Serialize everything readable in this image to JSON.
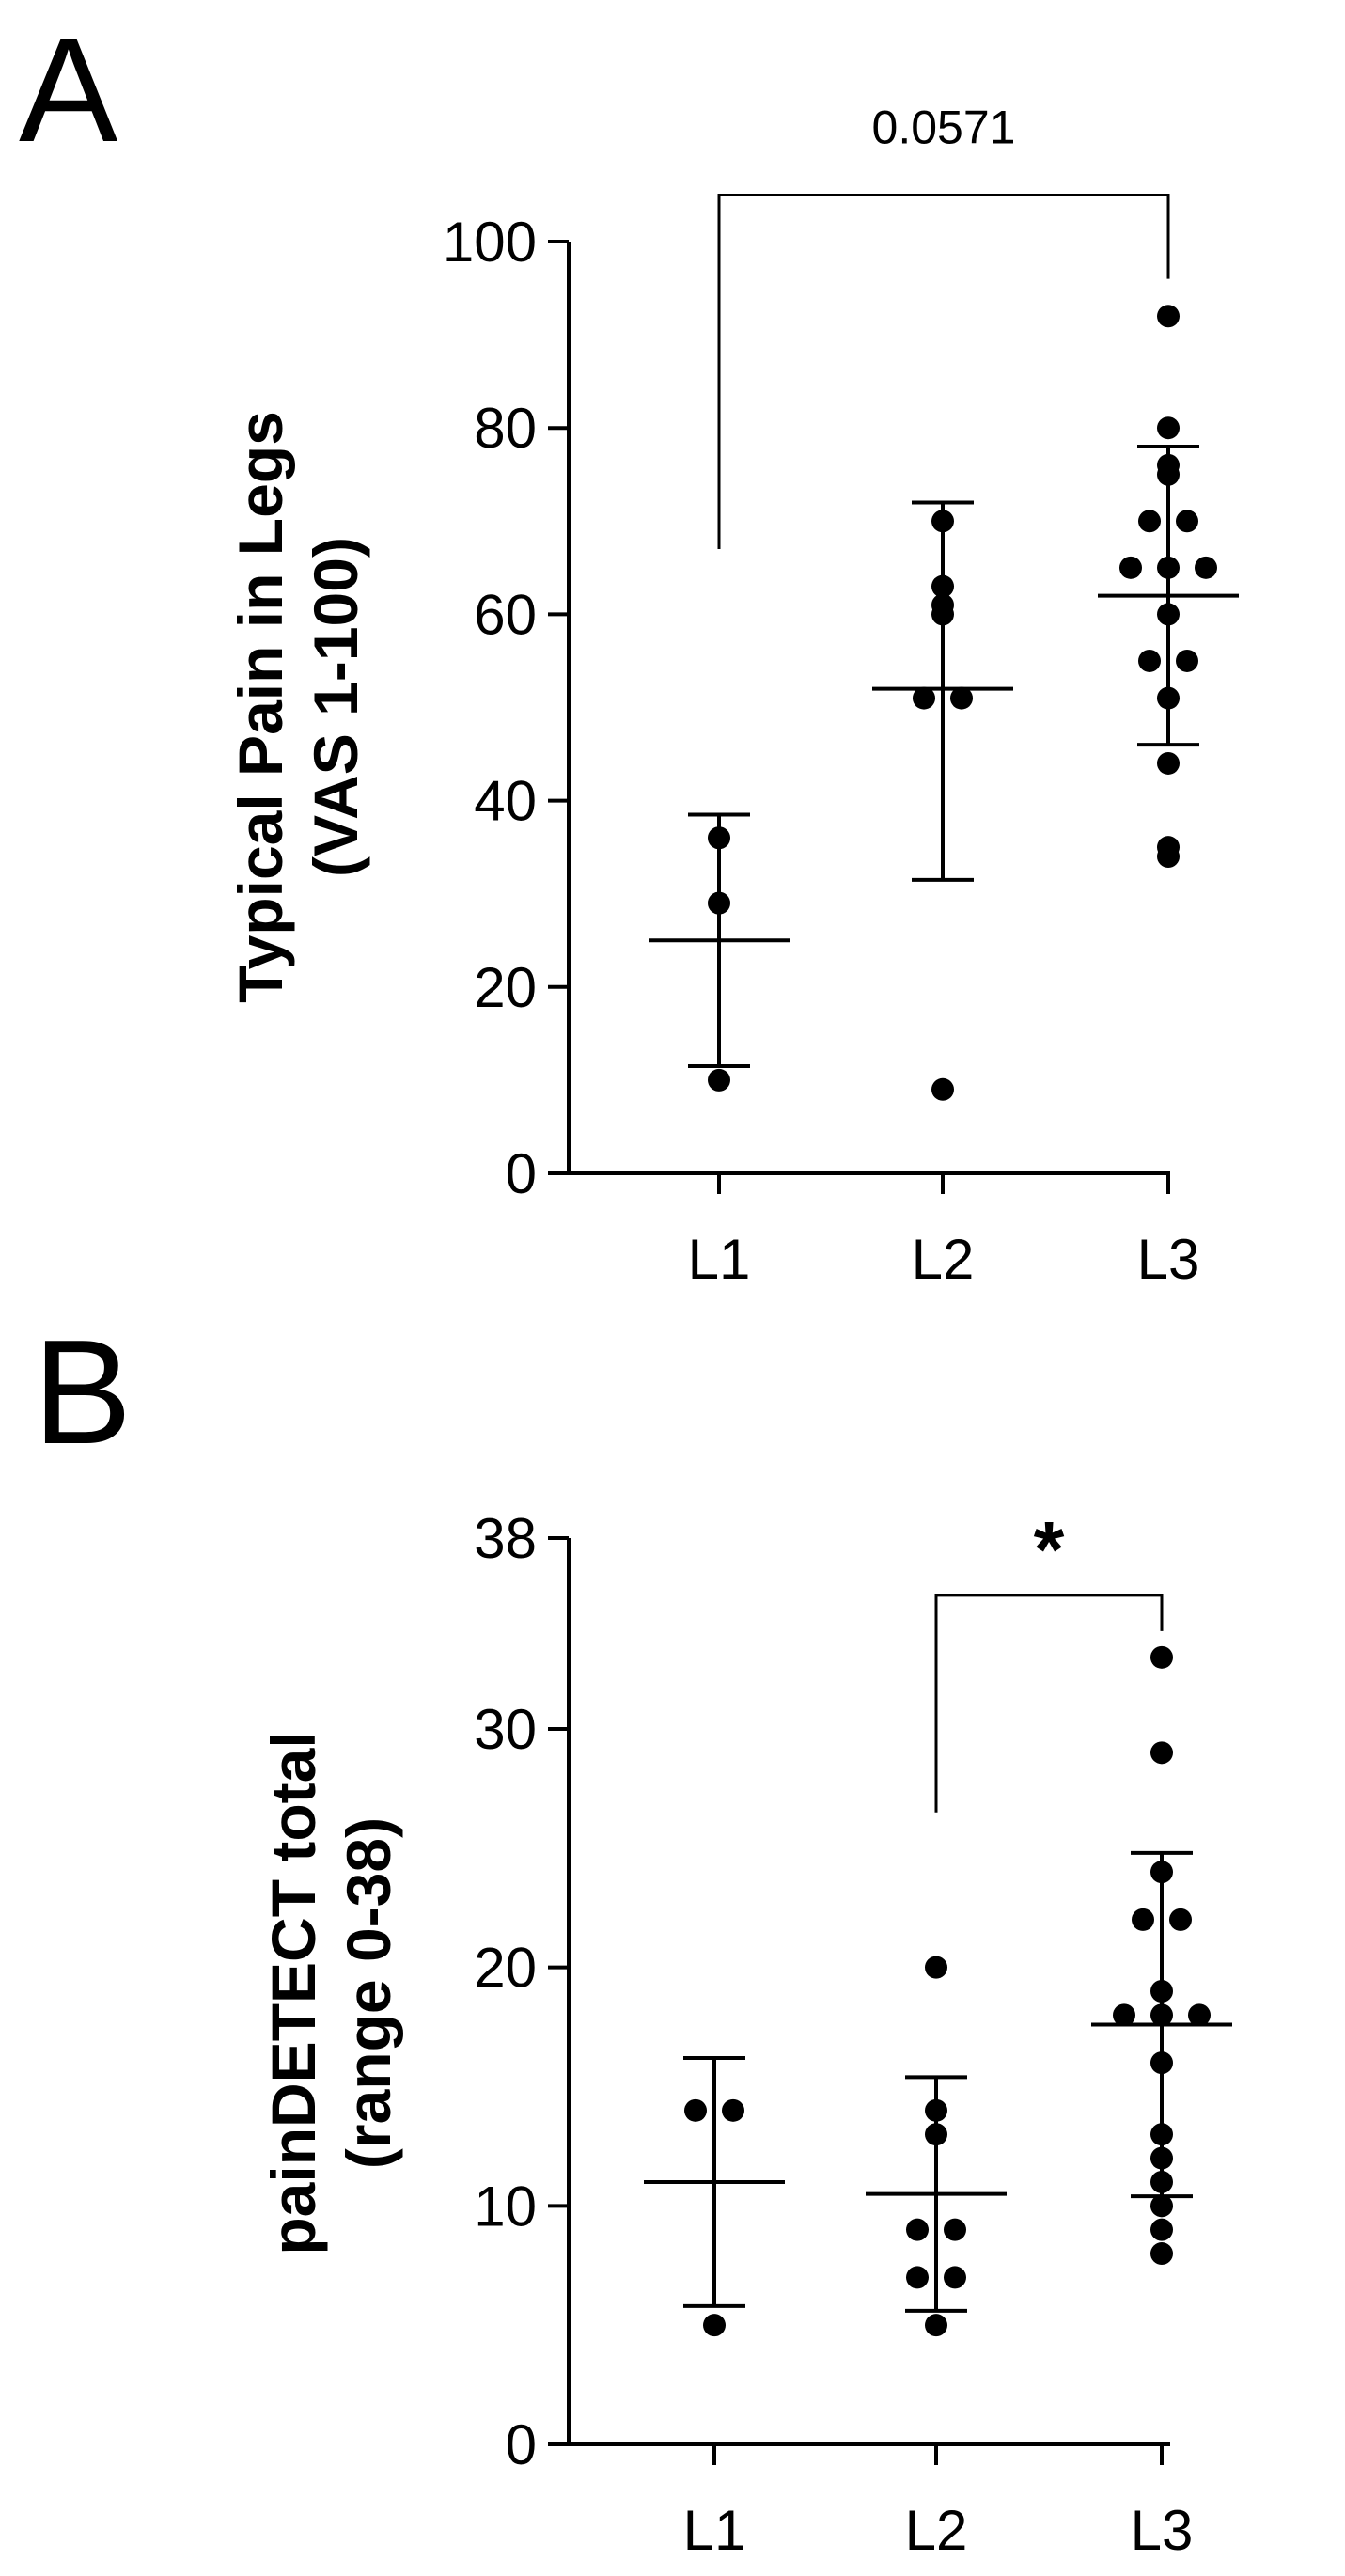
{
  "chart_data": [
    {
      "type": "scatter",
      "panel_label": "A",
      "ylabel_lines": [
        "Typical Pain in Legs",
        "(VAS 1-100)"
      ],
      "xlabel": "",
      "categories": [
        "L1",
        "L2",
        "L3"
      ],
      "ylim": [
        0,
        100
      ],
      "yticks": [
        0,
        20,
        40,
        60,
        80,
        100
      ],
      "series": [
        {
          "category": "L1",
          "points": [
            36,
            29,
            10
          ],
          "mean": 25,
          "sd_low": 11.5,
          "sd_high": 38.5
        },
        {
          "category": "L2",
          "points": [
            70,
            63,
            61,
            60,
            51,
            51,
            9
          ],
          "mean": 52,
          "sd_low": 31.5,
          "sd_high": 72
        },
        {
          "category": "L3",
          "points": [
            92,
            80,
            76,
            75,
            70,
            70,
            65,
            65,
            65,
            60,
            55,
            55,
            51,
            44,
            35,
            34
          ],
          "mean": 62,
          "sd_low": 46,
          "sd_high": 78
        }
      ],
      "annotations": [
        {
          "from": "L1",
          "to": "L3",
          "label": "0.0571",
          "bracket_top": 105,
          "left_end": 67,
          "right_end": 96
        }
      ],
      "grid": false
    },
    {
      "type": "scatter",
      "panel_label": "B",
      "ylabel_lines": [
        "painDETECT total",
        "(range 0-38)"
      ],
      "xlabel": "",
      "categories": [
        "L1",
        "L2",
        "L3"
      ],
      "ylim": [
        0,
        38
      ],
      "yticks": [
        0,
        10,
        20,
        30,
        38
      ],
      "series": [
        {
          "category": "L1",
          "points": [
            14,
            14,
            5
          ],
          "mean": 11,
          "sd_low": 5.8,
          "sd_high": 16.2
        },
        {
          "category": "L2",
          "points": [
            20,
            14,
            13,
            9,
            9,
            7,
            7,
            5
          ],
          "mean": 10.5,
          "sd_low": 5.6,
          "sd_high": 15.4
        },
        {
          "category": "L3",
          "points": [
            33,
            29,
            24,
            22,
            22,
            19,
            18,
            18,
            18,
            16,
            13,
            12,
            11,
            10,
            9,
            8
          ],
          "mean": 17.6,
          "sd_low": 10.4,
          "sd_high": 24.8
        }
      ],
      "annotations": [
        {
          "from": "L2",
          "to": "L3",
          "label": "*",
          "bracket_top": 35.6,
          "left_end": 26.5,
          "right_end": 34.1
        }
      ],
      "grid": false
    }
  ]
}
